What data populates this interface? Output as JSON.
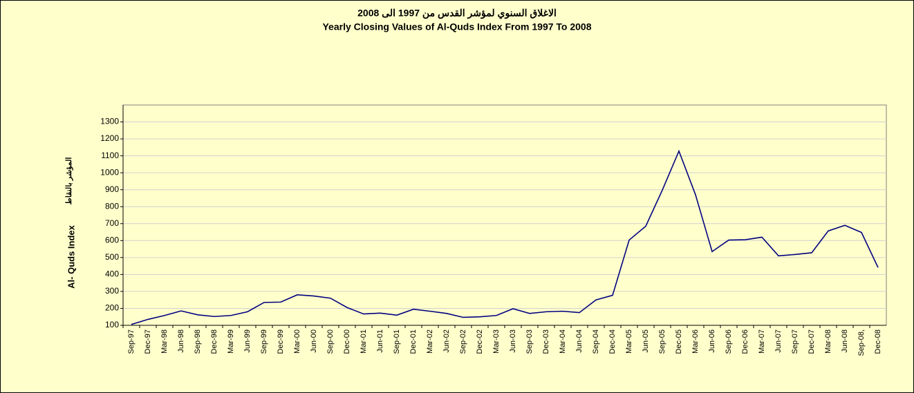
{
  "chart_data": {
    "type": "line",
    "title": "الاغلاق السنوي لمؤشر القدس من 1997 الى  2008",
    "subtitle": "Yearly Closing Values of Al-Quds Index From 1997 To  2008",
    "y_label": "Al- Quds Index",
    "y_label_ar": "المؤشر بالنقاط",
    "categories": [
      "Sep-97",
      "Dec-97",
      "Mar-98",
      "Jun-98",
      "Sep-98",
      "Dec-98",
      "Mar-99",
      "Jun-99",
      "Sep-99",
      "Dec-99",
      "Mar-00",
      "Jun-00",
      "Sep-00",
      "Dec-00",
      "Mar-01",
      "Jun-01",
      "Sep-01",
      "Dec-01",
      "Mar-02",
      "Jun-02",
      "Sep-02",
      "Dec-02",
      "Mar-03",
      "Jun-03",
      "Sep-03",
      "Dec-03",
      "Mar-04",
      "Jun-04",
      "Sep-04",
      "Dec-04",
      "Mar-05",
      "Jun-05",
      "Sep-05",
      "Dec-05",
      "Mar-06",
      "Jun-06",
      "Sep-06",
      "Dec-06",
      "Mar-07",
      "Jun-07",
      "Sep-07",
      "Dec-07",
      "Mar-08",
      "Jun-08",
      "Sep-08,",
      "Dec-08"
    ],
    "values": [
      105,
      135,
      158,
      185,
      162,
      152,
      158,
      180,
      235,
      237,
      280,
      273,
      260,
      205,
      167,
      172,
      160,
      195,
      183,
      170,
      147,
      150,
      158,
      198,
      170,
      180,
      183,
      175,
      250,
      277,
      603,
      685,
      898,
      1128,
      870,
      535,
      603,
      605,
      620,
      510,
      518,
      528,
      657,
      690,
      648,
      441
    ],
    "color": "#000080",
    "ylim": [
      100,
      1400
    ],
    "yticks": [
      100,
      200,
      300,
      400,
      500,
      600,
      700,
      800,
      900,
      1000,
      1100,
      1200,
      1300
    ],
    "grid": true
  }
}
